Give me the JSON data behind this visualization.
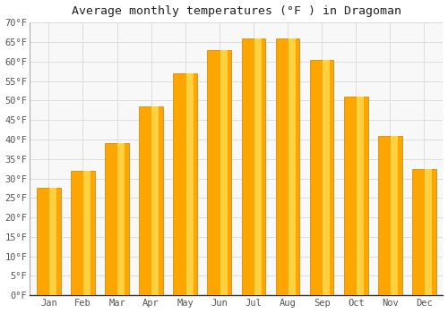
{
  "title": "Average monthly temperatures (°F ) in Dragoman",
  "months": [
    "Jan",
    "Feb",
    "Mar",
    "Apr",
    "May",
    "Jun",
    "Jul",
    "Aug",
    "Sep",
    "Oct",
    "Nov",
    "Dec"
  ],
  "values": [
    27.5,
    32.0,
    39.0,
    48.5,
    57.0,
    63.0,
    66.0,
    66.0,
    60.5,
    51.0,
    41.0,
    32.5
  ],
  "bar_color_main": "#FFA500",
  "bar_color_highlight": "#FFD040",
  "bar_edge_color": "#B8860B",
  "ylim": [
    0,
    70
  ],
  "yticks": [
    0,
    5,
    10,
    15,
    20,
    25,
    30,
    35,
    40,
    45,
    50,
    55,
    60,
    65,
    70
  ],
  "ytick_labels": [
    "0°F",
    "5°F",
    "10°F",
    "15°F",
    "20°F",
    "25°F",
    "30°F",
    "35°F",
    "40°F",
    "45°F",
    "50°F",
    "55°F",
    "60°F",
    "65°F",
    "70°F"
  ],
  "background_color": "#ffffff",
  "plot_bg_color": "#f8f8f8",
  "grid_color": "#dddddd",
  "title_fontsize": 9.5,
  "tick_fontsize": 7.5,
  "bar_width": 0.7,
  "font_family": "monospace"
}
